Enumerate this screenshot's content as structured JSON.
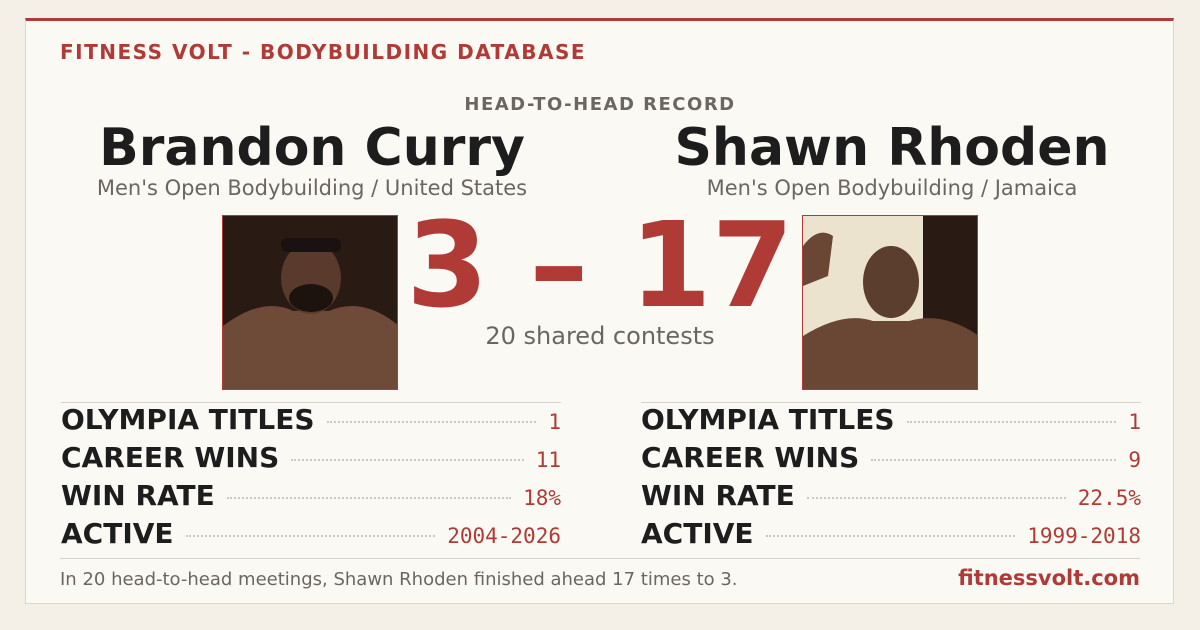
{
  "header": {
    "brand": "FITNESS VOLT - BODYBUILDING DATABASE",
    "title": "HEAD-TO-HEAD RECORD"
  },
  "athletes": [
    {
      "name": "Brandon Curry",
      "division": "Men's Open Bodybuilding / United States",
      "stats": [
        {
          "label": "OLYMPIA TITLES",
          "value": "1"
        },
        {
          "label": "CAREER WINS",
          "value": "11"
        },
        {
          "label": "WIN RATE",
          "value": "18%"
        },
        {
          "label": "ACTIVE",
          "value": "2004-2026"
        }
      ]
    },
    {
      "name": "Shawn Rhoden",
      "division": "Men's Open Bodybuilding / Jamaica",
      "stats": [
        {
          "label": "OLYMPIA TITLES",
          "value": "1"
        },
        {
          "label": "CAREER WINS",
          "value": "9"
        },
        {
          "label": "WIN RATE",
          "value": "22.5%"
        },
        {
          "label": "ACTIVE",
          "value": "1999-2018"
        }
      ]
    }
  ],
  "score": "3 – 17",
  "shared": "20 shared contests",
  "footer": {
    "text": "In 20 head-to-head meetings, Shawn Rhoden finished ahead 17 times to 3.",
    "site": "fitnessvolt.com"
  }
}
